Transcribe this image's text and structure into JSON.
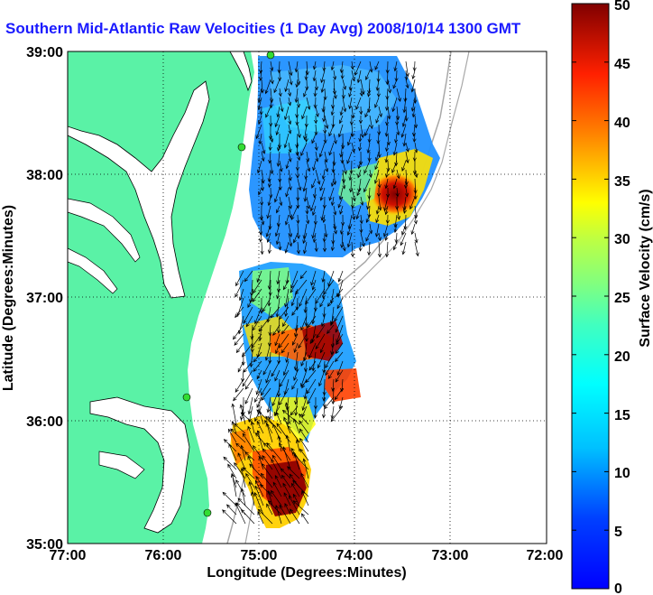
{
  "title": "Southern Mid-Atlantic Raw Velocities (1 Day Avg) 2008/10/14 1300 GMT",
  "xlabel": "Longitude (Degrees:Minutes)",
  "ylabel": "Latitude (Degrees:Minutes)",
  "colorbar_label": "Surface Velocity (cm/s)",
  "x_ticks": [
    "77:00",
    "76:00",
    "75:00",
    "74:00",
    "73:00",
    "72:00"
  ],
  "y_ticks": [
    "39:00",
    "38:00",
    "37:00",
    "36:00",
    "35:00"
  ],
  "colorbar_ticks": [
    "0",
    "5",
    "10",
    "15",
    "20",
    "25",
    "30",
    "35",
    "40",
    "45",
    "50"
  ],
  "colors": {
    "land": "#5af2a6",
    "title": "#1a1aff",
    "station": "#33dd33",
    "bathymetry": "#a8a8a8"
  },
  "map_extent": {
    "lon": [
      -77,
      -72
    ],
    "lat": [
      35,
      39
    ]
  },
  "velocity_range_cm_s": [
    0,
    50
  ],
  "colormap": "jet",
  "grid": true
}
